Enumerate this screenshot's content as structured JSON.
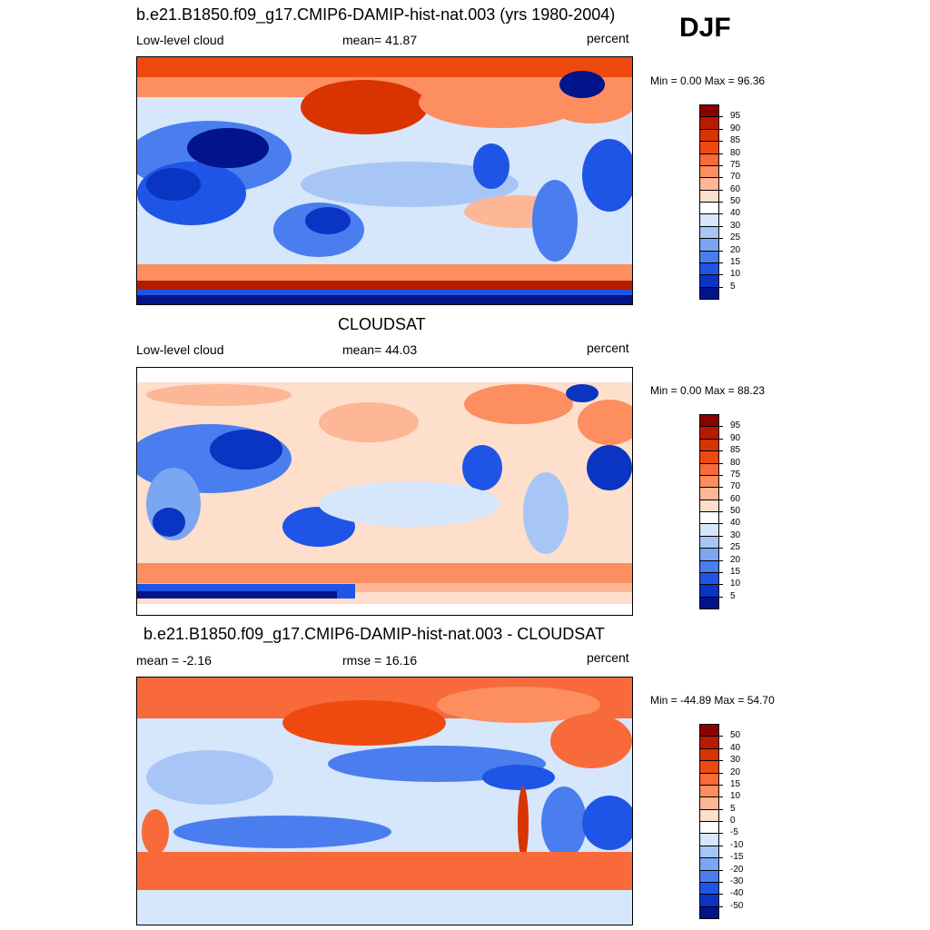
{
  "season": "DJF",
  "panels": [
    {
      "title": "b.e21.B1850.f09_g17.CMIP6-DAMIP-hist-nat.003 (yrs 1980-2004)",
      "left": "Low-level cloud",
      "center": "mean=  41.87",
      "right": "percent",
      "minmax": "Min =   0.00 Max =  96.36"
    },
    {
      "title": "CLOUDSAT",
      "left": "Low-level cloud",
      "center": "mean=  44.03",
      "right": "percent",
      "minmax": "Min =   0.00 Max =  88.23"
    },
    {
      "title": "b.e21.B1850.f09_g17.CMIP6-DAMIP-hist-nat.003 - CLOUDSAT",
      "left": "mean =  -2.16",
      "center": "rmse =  16.16",
      "right": "percent",
      "minmax": "Min = -44.89 Max =  54.70"
    }
  ],
  "colorbars": {
    "absolute": {
      "labels": [
        "95",
        "90",
        "85",
        "80",
        "75",
        "70",
        "60",
        "50",
        "40",
        "30",
        "25",
        "20",
        "15",
        "10",
        "5"
      ],
      "colors": [
        "#8b0000",
        "#b81a00",
        "#d93300",
        "#ee4a10",
        "#f86a3a",
        "#fc8e60",
        "#fdb696",
        "#fddfcc",
        "#ffffff",
        "#d6e6fb",
        "#a8c6f5",
        "#7aa6f2",
        "#4a7eee",
        "#1f55e6",
        "#0a34c2",
        "#02148a"
      ]
    },
    "difference": {
      "labels": [
        "50",
        "40",
        "30",
        "20",
        "15",
        "10",
        "5",
        "0",
        "-5",
        "-10",
        "-15",
        "-20",
        "-30",
        "-40",
        "-50"
      ],
      "colors": [
        "#8b0000",
        "#b81a00",
        "#d93300",
        "#ee4a10",
        "#f86a3a",
        "#fc8e60",
        "#fdb696",
        "#fddfcc",
        "#ffffff",
        "#d6e6fb",
        "#a8c6f5",
        "#7aa6f2",
        "#4a7eee",
        "#1f55e6",
        "#0a34c2",
        "#02148a"
      ]
    }
  }
}
